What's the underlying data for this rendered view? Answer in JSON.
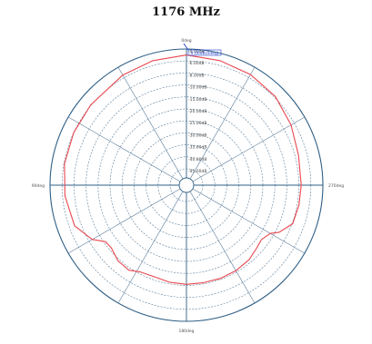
{
  "title": "1176 MHz",
  "chart_data": {
    "type": "polar-line",
    "title": "1176 MHz",
    "angle_labels": [
      {
        "angle": 0,
        "label": "0deg"
      },
      {
        "angle": 90,
        "label": "270deg"
      },
      {
        "angle": 180,
        "label": "180deg"
      },
      {
        "angle": 270,
        "label": "90deg"
      }
    ],
    "radial_ticks": [
      {
        "value": -4,
        "label": "-4.00dB"
      },
      {
        "value": -6,
        "label": "-6.00dB"
      },
      {
        "value": -8,
        "label": "-8.00dB"
      },
      {
        "value": -10,
        "label": "-10.00dB"
      },
      {
        "value": -15,
        "label": "-15.00dB"
      },
      {
        "value": -20,
        "label": "-20.00dB"
      },
      {
        "value": -25,
        "label": "-25.00dB"
      },
      {
        "value": -30,
        "label": "-30.00dB"
      },
      {
        "value": -35,
        "label": "-35.00dB"
      },
      {
        "value": -40,
        "label": "-40.00dB"
      },
      {
        "value": -45,
        "label": "-45.00dB"
      }
    ],
    "marker": {
      "label": "-4.00dB(0deg)",
      "angle": 0,
      "value": -4
    },
    "series": [
      {
        "color": "#e8474f",
        "points": [
          [
            0,
            -5.0
          ],
          [
            15,
            -5.2
          ],
          [
            30,
            -5.4
          ],
          [
            45,
            -5.8
          ],
          [
            60,
            -6.6
          ],
          [
            75,
            -7.4
          ],
          [
            90,
            -7.6
          ],
          [
            100,
            -7.7
          ],
          [
            110,
            -7.9
          ],
          [
            117,
            -9.4
          ],
          [
            120,
            -11.5
          ],
          [
            126,
            -13.2
          ],
          [
            132,
            -12.5
          ],
          [
            140,
            -11.2
          ],
          [
            150,
            -10.6
          ],
          [
            160,
            -10.4
          ],
          [
            170,
            -10.5
          ],
          [
            180,
            -10.4
          ],
          [
            190,
            -10.7
          ],
          [
            200,
            -11.3
          ],
          [
            208,
            -10.8
          ],
          [
            214,
            -9.6
          ],
          [
            222,
            -9.7
          ],
          [
            230,
            -11.0
          ],
          [
            235,
            -10.7
          ],
          [
            240,
            -8.6
          ],
          [
            250,
            -6.9
          ],
          [
            265,
            -6.4
          ],
          [
            280,
            -6.1
          ],
          [
            295,
            -6.0
          ],
          [
            310,
            -5.9
          ],
          [
            330,
            -5.5
          ],
          [
            345,
            -5.2
          ],
          [
            360,
            -5.0
          ]
        ]
      }
    ]
  }
}
